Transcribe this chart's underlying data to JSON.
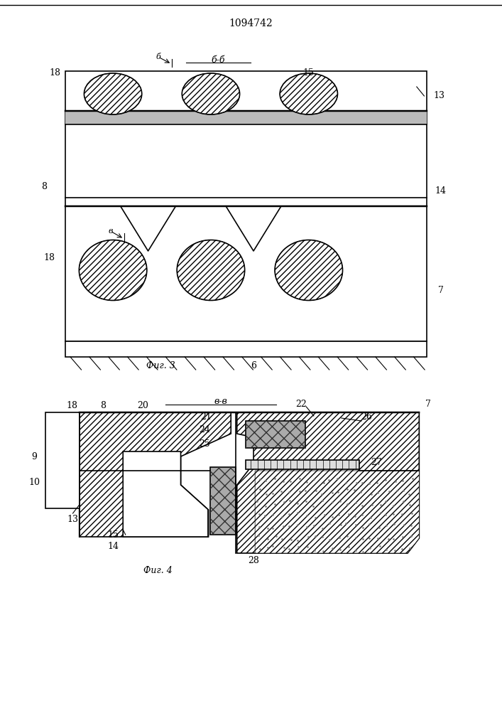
{
  "title": "1094742",
  "fig3_label": "Фиг. 3",
  "fig4_label": "Фиг. 4",
  "section_bb": "б-б",
  "section_vv": "в-в",
  "bg_color": "#ffffff",
  "line_color": "#000000",
  "hatch_color": "#000000"
}
